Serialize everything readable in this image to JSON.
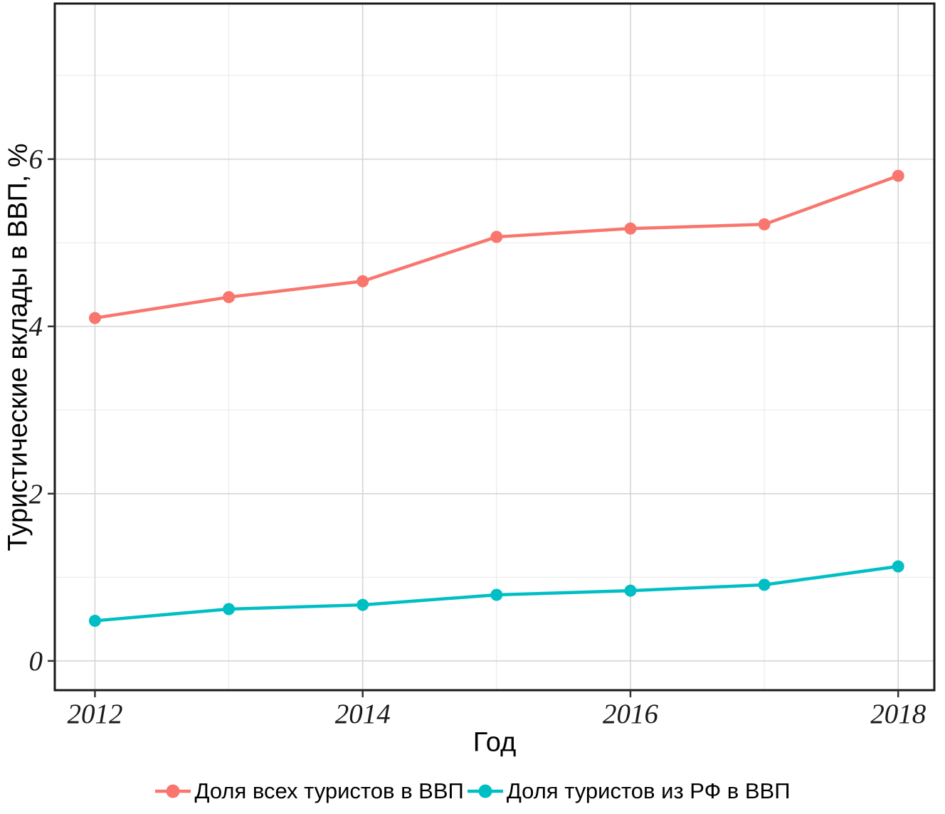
{
  "figure": {
    "background": "#ffffff"
  },
  "chart_data": {
    "type": "line",
    "title": "",
    "xlabel": "Год",
    "ylabel": "Туристические вклады в ВВП, %",
    "x": [
      2012,
      2013,
      2014,
      2015,
      2016,
      2017,
      2018
    ],
    "series": [
      {
        "name": "Доля всех туристов в ВВП",
        "color": "#F8766D",
        "values": [
          4.1,
          4.35,
          4.54,
          5.07,
          5.17,
          5.22,
          5.8
        ]
      },
      {
        "name": "Доля туристов из РФ в ВВП",
        "color": "#00BFC4",
        "values": [
          0.48,
          0.62,
          0.67,
          0.79,
          0.84,
          0.91,
          1.13
        ]
      }
    ],
    "x_ticks": [
      2012,
      2014,
      2016,
      2018
    ],
    "x_tick_labels": [
      "2012",
      "2014",
      "2016",
      "2018"
    ],
    "x_minor_ticks": [
      2013,
      2015,
      2017
    ],
    "y_ticks": [
      0,
      2,
      4,
      6
    ],
    "y_tick_labels": [
      "0",
      "2",
      "4",
      "6"
    ],
    "y_minor_ticks": [
      1,
      3,
      5,
      7
    ],
    "xlim": [
      2011.7,
      2018.27
    ],
    "ylim": [
      -0.35,
      7.86
    ],
    "grid": true,
    "legend_position": "bottom",
    "colors": {
      "panel_border": "#1a1a1a",
      "major_grid": "#d5d5d5",
      "minor_grid": "#ebebeb",
      "tick": "#333333",
      "tick_label": "#1a1a1a"
    }
  }
}
